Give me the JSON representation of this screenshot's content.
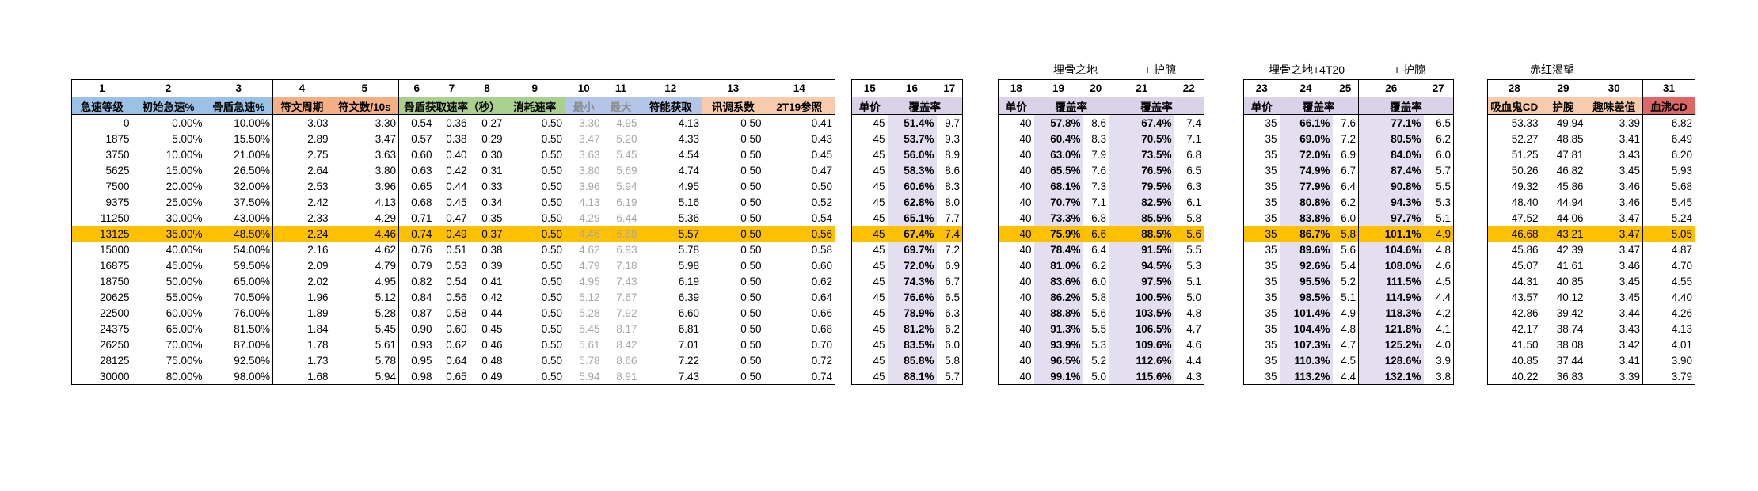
{
  "group_titles": {
    "t4_left": "埋骨之地",
    "t4_right": "+ 护腕",
    "t5_left": "埋骨之地+4T20",
    "t5_right": "+ 护腕",
    "t6": "赤红渴望"
  },
  "colors": {
    "blue": "#9bc2e6",
    "orange": "#f4b084",
    "green": "#a9d08e",
    "gray_blue": "#b4c6e7",
    "pink": "#f8cbad",
    "lavender": "#d9d2e9",
    "coverage_bg": "#e4dff0",
    "red": "#e06666",
    "highlight": "#ffc000"
  },
  "t1": {
    "col_numbers": [
      "1",
      "2",
      "3",
      "4",
      "5",
      "6",
      "7",
      "8",
      "9",
      "10",
      "11",
      "12",
      "13",
      "14"
    ],
    "headers": [
      "急速等级",
      "初始急速%",
      "骨盾急速%",
      "符文周期",
      "符文数/10s",
      "骨盾获取速率（秒）",
      "消耗速率",
      "最小",
      "最大",
      "符能获取",
      "讯调系数",
      "2T19参照"
    ],
    "rows": [
      [
        "0",
        "0.00%",
        "10.00%",
        "3.03",
        "3.30",
        "0.54",
        "0.36",
        "0.27",
        "0.50",
        "3.30",
        "4.95",
        "4.13",
        "0.50",
        "0.41"
      ],
      [
        "1875",
        "5.00%",
        "15.50%",
        "2.89",
        "3.47",
        "0.57",
        "0.38",
        "0.29",
        "0.50",
        "3.47",
        "5.20",
        "4.33",
        "0.50",
        "0.43"
      ],
      [
        "3750",
        "10.00%",
        "21.00%",
        "2.75",
        "3.63",
        "0.60",
        "0.40",
        "0.30",
        "0.50",
        "3.63",
        "5.45",
        "4.54",
        "0.50",
        "0.45"
      ],
      [
        "5625",
        "15.00%",
        "26.50%",
        "2.64",
        "3.80",
        "0.63",
        "0.42",
        "0.31",
        "0.50",
        "3.80",
        "5.69",
        "4.74",
        "0.50",
        "0.47"
      ],
      [
        "7500",
        "20.00%",
        "32.00%",
        "2.53",
        "3.96",
        "0.65",
        "0.44",
        "0.33",
        "0.50",
        "3.96",
        "5.94",
        "4.95",
        "0.50",
        "0.50"
      ],
      [
        "9375",
        "25.00%",
        "37.50%",
        "2.42",
        "4.13",
        "0.68",
        "0.45",
        "0.34",
        "0.50",
        "4.13",
        "6.19",
        "5.16",
        "0.50",
        "0.52"
      ],
      [
        "11250",
        "30.00%",
        "43.00%",
        "2.33",
        "4.29",
        "0.71",
        "0.47",
        "0.35",
        "0.50",
        "4.29",
        "6.44",
        "5.36",
        "0.50",
        "0.54"
      ],
      [
        "13125",
        "35.00%",
        "48.50%",
        "2.24",
        "4.46",
        "0.74",
        "0.49",
        "0.37",
        "0.50",
        "4.46",
        "6.68",
        "5.57",
        "0.50",
        "0.56"
      ],
      [
        "15000",
        "40.00%",
        "54.00%",
        "2.16",
        "4.62",
        "0.76",
        "0.51",
        "0.38",
        "0.50",
        "4.62",
        "6.93",
        "5.78",
        "0.50",
        "0.58"
      ],
      [
        "16875",
        "45.00%",
        "59.50%",
        "2.09",
        "4.79",
        "0.79",
        "0.53",
        "0.39",
        "0.50",
        "4.79",
        "7.18",
        "5.98",
        "0.50",
        "0.60"
      ],
      [
        "18750",
        "50.00%",
        "65.00%",
        "2.02",
        "4.95",
        "0.82",
        "0.54",
        "0.41",
        "0.50",
        "4.95",
        "7.43",
        "6.19",
        "0.50",
        "0.62"
      ],
      [
        "20625",
        "55.00%",
        "70.50%",
        "1.96",
        "5.12",
        "0.84",
        "0.56",
        "0.42",
        "0.50",
        "5.12",
        "7.67",
        "6.39",
        "0.50",
        "0.64"
      ],
      [
        "22500",
        "60.00%",
        "76.00%",
        "1.89",
        "5.28",
        "0.87",
        "0.58",
        "0.44",
        "0.50",
        "5.28",
        "7.92",
        "6.60",
        "0.50",
        "0.66"
      ],
      [
        "24375",
        "65.00%",
        "81.50%",
        "1.84",
        "5.45",
        "0.90",
        "0.60",
        "0.45",
        "0.50",
        "5.45",
        "8.17",
        "6.81",
        "0.50",
        "0.68"
      ],
      [
        "26250",
        "70.00%",
        "87.00%",
        "1.78",
        "5.61",
        "0.93",
        "0.62",
        "0.46",
        "0.50",
        "5.61",
        "8.42",
        "7.01",
        "0.50",
        "0.70"
      ],
      [
        "28125",
        "75.00%",
        "92.50%",
        "1.73",
        "5.78",
        "0.95",
        "0.64",
        "0.48",
        "0.50",
        "5.78",
        "8.66",
        "7.22",
        "0.50",
        "0.72"
      ],
      [
        "30000",
        "80.00%",
        "98.00%",
        "1.68",
        "5.94",
        "0.98",
        "0.65",
        "0.49",
        "0.50",
        "5.94",
        "8.91",
        "7.43",
        "0.50",
        "0.74"
      ]
    ]
  },
  "t2": {
    "col_numbers": [
      "15",
      "16",
      "17"
    ],
    "headers": [
      "单价",
      "覆盖率"
    ],
    "rows": [
      [
        "45",
        "51.4%",
        "9.7"
      ],
      [
        "45",
        "53.7%",
        "9.3"
      ],
      [
        "45",
        "56.0%",
        "8.9"
      ],
      [
        "45",
        "58.3%",
        "8.6"
      ],
      [
        "45",
        "60.6%",
        "8.3"
      ],
      [
        "45",
        "62.8%",
        "8.0"
      ],
      [
        "45",
        "65.1%",
        "7.7"
      ],
      [
        "45",
        "67.4%",
        "7.4"
      ],
      [
        "45",
        "69.7%",
        "7.2"
      ],
      [
        "45",
        "72.0%",
        "6.9"
      ],
      [
        "45",
        "74.3%",
        "6.7"
      ],
      [
        "45",
        "76.6%",
        "6.5"
      ],
      [
        "45",
        "78.9%",
        "6.3"
      ],
      [
        "45",
        "81.2%",
        "6.2"
      ],
      [
        "45",
        "83.5%",
        "6.0"
      ],
      [
        "45",
        "85.8%",
        "5.8"
      ],
      [
        "45",
        "88.1%",
        "5.7"
      ]
    ]
  },
  "t3": {
    "col_numbers": [
      "18",
      "19",
      "20",
      "21",
      "22"
    ],
    "headers": [
      "单价",
      "覆盖率",
      "覆盖率"
    ],
    "rows": [
      [
        "40",
        "57.8%",
        "8.6",
        "67.4%",
        "7.4"
      ],
      [
        "40",
        "60.4%",
        "8.3",
        "70.5%",
        "7.1"
      ],
      [
        "40",
        "63.0%",
        "7.9",
        "73.5%",
        "6.8"
      ],
      [
        "40",
        "65.5%",
        "7.6",
        "76.5%",
        "6.5"
      ],
      [
        "40",
        "68.1%",
        "7.3",
        "79.5%",
        "6.3"
      ],
      [
        "40",
        "70.7%",
        "7.1",
        "82.5%",
        "6.1"
      ],
      [
        "40",
        "73.3%",
        "6.8",
        "85.5%",
        "5.8"
      ],
      [
        "40",
        "75.9%",
        "6.6",
        "88.5%",
        "5.6"
      ],
      [
        "40",
        "78.4%",
        "6.4",
        "91.5%",
        "5.5"
      ],
      [
        "40",
        "81.0%",
        "6.2",
        "94.5%",
        "5.3"
      ],
      [
        "40",
        "83.6%",
        "6.0",
        "97.5%",
        "5.1"
      ],
      [
        "40",
        "86.2%",
        "5.8",
        "100.5%",
        "5.0"
      ],
      [
        "40",
        "88.8%",
        "5.6",
        "103.5%",
        "4.8"
      ],
      [
        "40",
        "91.3%",
        "5.5",
        "106.5%",
        "4.7"
      ],
      [
        "40",
        "93.9%",
        "5.3",
        "109.6%",
        "4.6"
      ],
      [
        "40",
        "96.5%",
        "5.2",
        "112.6%",
        "4.4"
      ],
      [
        "40",
        "99.1%",
        "5.0",
        "115.6%",
        "4.3"
      ]
    ]
  },
  "t4": {
    "col_numbers": [
      "23",
      "24",
      "25",
      "26",
      "27"
    ],
    "headers": [
      "单价",
      "覆盖率",
      "覆盖率"
    ],
    "rows": [
      [
        "35",
        "66.1%",
        "7.6",
        "77.1%",
        "6.5"
      ],
      [
        "35",
        "69.0%",
        "7.2",
        "80.5%",
        "6.2"
      ],
      [
        "35",
        "72.0%",
        "6.9",
        "84.0%",
        "6.0"
      ],
      [
        "35",
        "74.9%",
        "6.7",
        "87.4%",
        "5.7"
      ],
      [
        "35",
        "77.9%",
        "6.4",
        "90.8%",
        "5.5"
      ],
      [
        "35",
        "80.8%",
        "6.2",
        "94.3%",
        "5.3"
      ],
      [
        "35",
        "83.8%",
        "6.0",
        "97.7%",
        "5.1"
      ],
      [
        "35",
        "86.7%",
        "5.8",
        "101.1%",
        "4.9"
      ],
      [
        "35",
        "89.6%",
        "5.6",
        "104.6%",
        "4.8"
      ],
      [
        "35",
        "92.6%",
        "5.4",
        "108.0%",
        "4.6"
      ],
      [
        "35",
        "95.5%",
        "5.2",
        "111.5%",
        "4.5"
      ],
      [
        "35",
        "98.5%",
        "5.1",
        "114.9%",
        "4.4"
      ],
      [
        "35",
        "101.4%",
        "4.9",
        "118.3%",
        "4.2"
      ],
      [
        "35",
        "104.4%",
        "4.8",
        "121.8%",
        "4.1"
      ],
      [
        "35",
        "107.3%",
        "4.7",
        "125.2%",
        "4.0"
      ],
      [
        "35",
        "110.3%",
        "4.5",
        "128.6%",
        "3.9"
      ],
      [
        "35",
        "113.2%",
        "4.4",
        "132.1%",
        "3.8"
      ]
    ]
  },
  "t5": {
    "col_numbers": [
      "28",
      "29",
      "30",
      "31"
    ],
    "headers": [
      "吸血鬼CD",
      "护腕",
      "趣味差值",
      "血沸CD"
    ],
    "rows": [
      [
        "53.33",
        "49.94",
        "3.39",
        "6.82"
      ],
      [
        "52.27",
        "48.85",
        "3.41",
        "6.49"
      ],
      [
        "51.25",
        "47.81",
        "3.43",
        "6.20"
      ],
      [
        "50.26",
        "46.82",
        "3.45",
        "5.93"
      ],
      [
        "49.32",
        "45.86",
        "3.46",
        "5.68"
      ],
      [
        "48.40",
        "44.94",
        "3.46",
        "5.45"
      ],
      [
        "47.52",
        "44.06",
        "3.47",
        "5.24"
      ],
      [
        "46.68",
        "43.21",
        "3.47",
        "5.05"
      ],
      [
        "45.86",
        "42.39",
        "3.47",
        "4.87"
      ],
      [
        "45.07",
        "41.61",
        "3.46",
        "4.70"
      ],
      [
        "44.31",
        "40.85",
        "3.45",
        "4.55"
      ],
      [
        "43.57",
        "40.12",
        "3.45",
        "4.40"
      ],
      [
        "42.86",
        "39.42",
        "3.44",
        "4.26"
      ],
      [
        "42.17",
        "38.74",
        "3.43",
        "4.13"
      ],
      [
        "41.50",
        "38.08",
        "3.42",
        "4.01"
      ],
      [
        "40.85",
        "37.44",
        "3.41",
        "3.90"
      ],
      [
        "40.22",
        "36.83",
        "3.39",
        "3.79"
      ]
    ]
  }
}
